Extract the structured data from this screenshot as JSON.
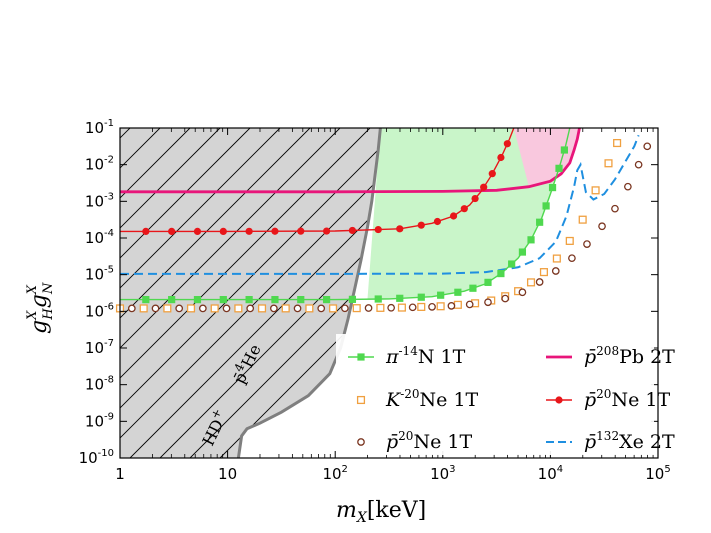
{
  "chart_data": {
    "type": "line",
    "xscale": "log",
    "yscale": "log",
    "xlim_exp": [
      0,
      5
    ],
    "ylim_exp": [
      -10,
      -1
    ],
    "xlabel_var": "m",
    "xlabel_sub": "X",
    "xlabel_unit": "[keV]",
    "ylabel": "g_H^X g_N^X",
    "ylabel_base": "g",
    "ylabel_sup": "X",
    "ylabel_sub_h": "H",
    "ylabel_sub_n": "N",
    "x_ticks": [
      {
        "exp": 0,
        "label": "1",
        "sup": ""
      },
      {
        "exp": 1,
        "label": "10",
        "sup": ""
      },
      {
        "exp": 2,
        "label": "10",
        "sup": "2"
      },
      {
        "exp": 3,
        "label": "10",
        "sup": "3"
      },
      {
        "exp": 4,
        "label": "10",
        "sup": "4"
      },
      {
        "exp": 5,
        "label": "10",
        "sup": "5"
      }
    ],
    "y_ticks": [
      {
        "exp": -1,
        "label": "10",
        "sup": "-1"
      },
      {
        "exp": -2,
        "label": "10",
        "sup": "-2"
      },
      {
        "exp": -3,
        "label": "10",
        "sup": "-3"
      },
      {
        "exp": -4,
        "label": "10",
        "sup": "-4"
      },
      {
        "exp": -5,
        "label": "10",
        "sup": "-5"
      },
      {
        "exp": -6,
        "label": "10",
        "sup": "-6"
      },
      {
        "exp": -7,
        "label": "10",
        "sup": "-7"
      },
      {
        "exp": -8,
        "label": "10",
        "sup": "-8"
      },
      {
        "exp": -9,
        "label": "10",
        "sup": "-9"
      },
      {
        "exp": -10,
        "label": "10",
        "sup": "-10"
      }
    ],
    "excluded_region": {
      "name": "HD+ / p-bar 4He excluded",
      "fill": "#d4d4d4",
      "boundary": [
        [
          1.1,
          -10
        ],
        [
          1.13,
          -9.4
        ],
        [
          1.18,
          -9.2
        ],
        [
          1.3,
          -9.05
        ],
        [
          1.5,
          -8.75
        ],
        [
          1.75,
          -8.3
        ],
        [
          1.95,
          -7.7
        ],
        [
          2.05,
          -7.0
        ],
        [
          2.12,
          -6.2
        ],
        [
          2.18,
          -5.4
        ],
        [
          2.24,
          -4.6
        ],
        [
          2.3,
          -3.7
        ],
        [
          2.34,
          -3.0
        ],
        [
          2.37,
          -2.3
        ],
        [
          2.4,
          -1.6
        ],
        [
          2.42,
          -1
        ]
      ],
      "label_left": "HD",
      "label_left_sup": "+",
      "label_right_base": "p̄",
      "label_right_sup": "4",
      "label_right_el": "He"
    },
    "series": [
      {
        "name": "p̄ 208Pb 2T",
        "legend_base": "p̄",
        "legend_sup": "208",
        "legend_el": "Pb",
        "legend_field": "2T",
        "color": "#e8157a",
        "style": "solid",
        "marker": "none",
        "points": [
          [
            0,
            -2.74
          ],
          [
            1,
            -2.74
          ],
          [
            2,
            -2.74
          ],
          [
            3,
            -2.73
          ],
          [
            3.5,
            -2.7
          ],
          [
            3.8,
            -2.6
          ],
          [
            4.0,
            -2.45
          ],
          [
            4.1,
            -2.25
          ],
          [
            4.18,
            -1.95
          ],
          [
            4.22,
            -1.6
          ],
          [
            4.25,
            -1.3
          ],
          [
            4.27,
            -1.0
          ]
        ]
      },
      {
        "name": "p̄ 20Ne 1T (filled)",
        "legend_base": "p̄",
        "legend_sup": "20",
        "legend_el": "Ne",
        "legend_field": "1T",
        "color": "#e8161a",
        "style": "solid",
        "marker": "circle",
        "points": [
          [
            0,
            -3.82
          ],
          [
            1,
            -3.82
          ],
          [
            2,
            -3.81
          ],
          [
            2.6,
            -3.75
          ],
          [
            2.9,
            -3.6
          ],
          [
            3.1,
            -3.4
          ],
          [
            3.25,
            -3.1
          ],
          [
            3.35,
            -2.75
          ],
          [
            3.45,
            -2.3
          ],
          [
            3.55,
            -1.75
          ],
          [
            3.62,
            -1.3
          ],
          [
            3.66,
            -1.0
          ]
        ],
        "marker_x": [
          0.24,
          0.48,
          0.72,
          0.96,
          1.2,
          1.44,
          1.68,
          1.92,
          2.16,
          2.4,
          2.6,
          2.8,
          2.95,
          3.1,
          3.2,
          3.3,
          3.38,
          3.46,
          3.54,
          3.6
        ]
      },
      {
        "name": "p̄ 132Xe 2T",
        "legend_base": "p̄",
        "legend_sup": "132",
        "legend_el": "Xe",
        "legend_field": "2T",
        "color": "#1f8fe0",
        "style": "dashed",
        "marker": "none",
        "points": [
          [
            0,
            -4.98
          ],
          [
            1,
            -4.98
          ],
          [
            2,
            -4.98
          ],
          [
            3,
            -4.97
          ],
          [
            3.4,
            -4.93
          ],
          [
            3.7,
            -4.8
          ],
          [
            3.9,
            -4.55
          ],
          [
            4.05,
            -4.1
          ],
          [
            4.15,
            -3.4
          ],
          [
            4.22,
            -2.6
          ],
          [
            4.25,
            -2.15
          ],
          [
            4.28,
            -2.0
          ],
          [
            4.33,
            -2.75
          ],
          [
            4.4,
            -2.95
          ],
          [
            4.5,
            -2.8
          ],
          [
            4.6,
            -2.4
          ],
          [
            4.7,
            -1.9
          ],
          [
            4.78,
            -1.5
          ],
          [
            4.82,
            -1.2
          ]
        ]
      },
      {
        "name": "π- 14N 1T",
        "legend_base": "π",
        "legend_sup": "-14",
        "legend_el": "N",
        "legend_field": "1T",
        "color": "#4fd84f",
        "style": "solid",
        "marker": "square",
        "region_fill": "#c9f5c9",
        "points": [
          [
            0,
            -5.68
          ],
          [
            1,
            -5.68
          ],
          [
            2,
            -5.68
          ],
          [
            2.5,
            -5.66
          ],
          [
            2.9,
            -5.6
          ],
          [
            3.2,
            -5.45
          ],
          [
            3.4,
            -5.25
          ],
          [
            3.55,
            -4.95
          ],
          [
            3.7,
            -4.55
          ],
          [
            3.82,
            -4.05
          ],
          [
            3.92,
            -3.45
          ],
          [
            4.0,
            -2.8
          ],
          [
            4.08,
            -2.1
          ],
          [
            4.14,
            -1.5
          ],
          [
            4.18,
            -1.0
          ]
        ],
        "marker_x": [
          0.24,
          0.48,
          0.72,
          0.96,
          1.2,
          1.44,
          1.68,
          1.92,
          2.16,
          2.4,
          2.6,
          2.8,
          2.98,
          3.14,
          3.28,
          3.42,
          3.54,
          3.64,
          3.74,
          3.82,
          3.9,
          3.96,
          4.02,
          4.08,
          4.13
        ]
      },
      {
        "name": "K- 20Ne 1T",
        "legend_base": "K",
        "legend_sup": "-20",
        "legend_el": "Ne",
        "legend_field": "1T",
        "color": "#f0a040",
        "style": "none",
        "marker": "open-square",
        "points": [
          [
            0,
            -5.92
          ],
          [
            1,
            -5.92
          ],
          [
            2,
            -5.92
          ],
          [
            2.6,
            -5.9
          ],
          [
            3.0,
            -5.86
          ],
          [
            3.3,
            -5.78
          ],
          [
            3.5,
            -5.68
          ],
          [
            3.7,
            -5.45
          ],
          [
            3.9,
            -5.05
          ],
          [
            4.05,
            -4.6
          ],
          [
            4.2,
            -4.0
          ],
          [
            4.32,
            -3.4
          ],
          [
            4.42,
            -2.7
          ],
          [
            4.52,
            -2.1
          ],
          [
            4.6,
            -1.55
          ],
          [
            4.65,
            -1.2
          ]
        ],
        "marker_x": [
          0,
          0.22,
          0.44,
          0.66,
          0.88,
          1.1,
          1.32,
          1.54,
          1.76,
          1.98,
          2.2,
          2.42,
          2.62,
          2.8,
          2.98,
          3.14,
          3.3,
          3.45,
          3.58,
          3.7,
          3.82,
          3.94,
          4.06,
          4.18,
          4.3,
          4.42,
          4.54,
          4.62
        ]
      },
      {
        "name": "p̄ 20Ne 1T (open)",
        "legend_base": "p̄",
        "legend_sup": "20",
        "legend_el": "Ne",
        "legend_field": "1T",
        "color": "#7a3520",
        "style": "none",
        "marker": "open-circle",
        "points": [
          [
            0,
            -5.92
          ],
          [
            1,
            -5.92
          ],
          [
            2,
            -5.92
          ],
          [
            2.6,
            -5.9
          ],
          [
            3.0,
            -5.87
          ],
          [
            3.3,
            -5.8
          ],
          [
            3.5,
            -5.72
          ],
          [
            3.7,
            -5.55
          ],
          [
            3.9,
            -5.2
          ],
          [
            4.1,
            -4.8
          ],
          [
            4.3,
            -4.3
          ],
          [
            4.45,
            -3.8
          ],
          [
            4.6,
            -3.2
          ],
          [
            4.72,
            -2.6
          ],
          [
            4.82,
            -2.0
          ],
          [
            4.9,
            -1.5
          ]
        ],
        "marker_x": [
          0.11,
          0.33,
          0.55,
          0.77,
          0.99,
          1.21,
          1.43,
          1.65,
          1.87,
          2.09,
          2.31,
          2.52,
          2.72,
          2.9,
          3.08,
          3.25,
          3.42,
          3.58,
          3.74,
          3.9,
          4.05,
          4.2,
          4.34,
          4.48,
          4.6,
          4.72,
          4.82,
          4.9
        ]
      }
    ],
    "legend_entries": [
      {
        "ref": 3,
        "marker": "square"
      },
      {
        "ref": 4,
        "marker": "open-square"
      },
      {
        "ref": 5,
        "marker": "open-circle"
      },
      {
        "ref": 0,
        "marker": "none"
      },
      {
        "ref": 1,
        "marker": "circle"
      },
      {
        "ref": 2,
        "marker": "none"
      }
    ]
  }
}
